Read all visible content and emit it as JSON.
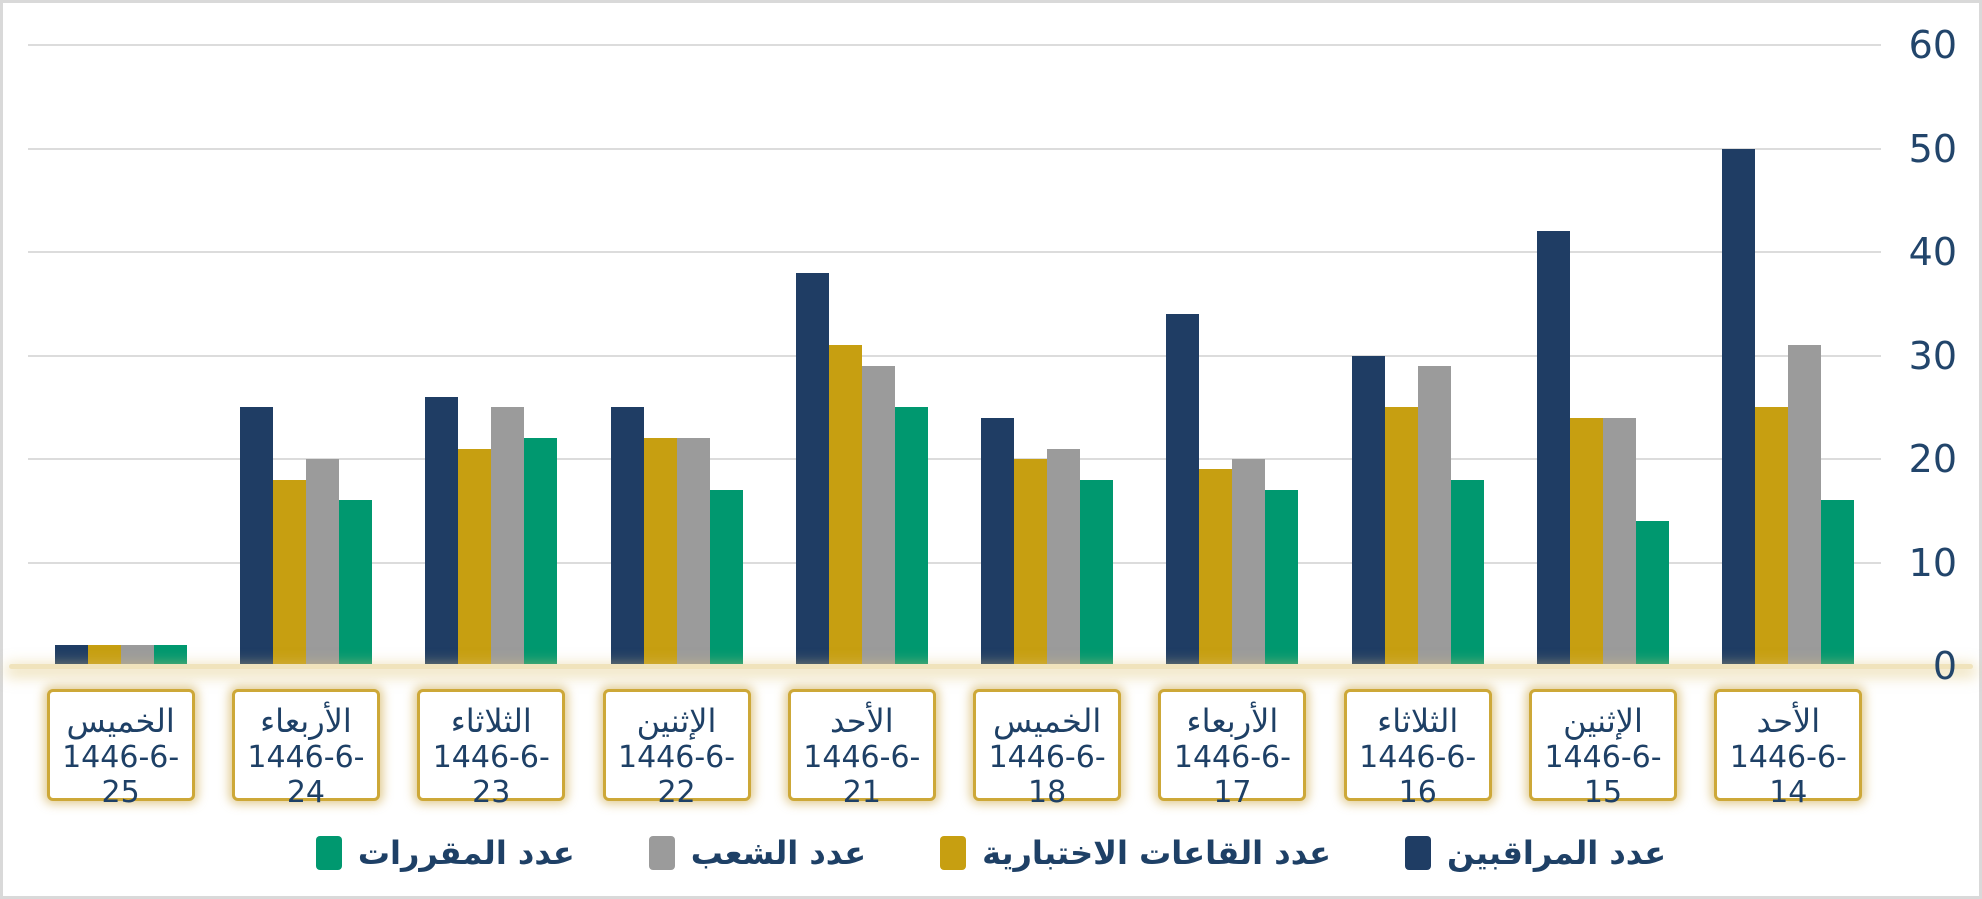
{
  "chart_data": {
    "type": "bar",
    "title": "",
    "direction": "rtl",
    "categories": [
      {
        "day": "الخميس",
        "date": "1446-6-25"
      },
      {
        "day": "الأربعاء",
        "date": "1446-6-24"
      },
      {
        "day": "الثلاثاء",
        "date": "1446-6-23"
      },
      {
        "day": "الإثنين",
        "date": "1446-6-22"
      },
      {
        "day": "الأحد",
        "date": "1446-6-21"
      },
      {
        "day": "الخميس",
        "date": "1446-6-18"
      },
      {
        "day": "الأربعاء",
        "date": "1446-6-17"
      },
      {
        "day": "الثلاثاء",
        "date": "1446-6-16"
      },
      {
        "day": "الإثنين",
        "date": "1446-6-15"
      },
      {
        "day": "الأحد",
        "date": "1446-6-14"
      }
    ],
    "series": [
      {
        "name": "عدد المراقبين",
        "color": "#1F3D64",
        "values": [
          2,
          25,
          26,
          25,
          38,
          24,
          34,
          30,
          42,
          50
        ]
      },
      {
        "name": "عدد القاعات الاختبارية",
        "color": "#C79F11",
        "values": [
          2,
          18,
          21,
          22,
          31,
          20,
          19,
          25,
          24,
          25
        ]
      },
      {
        "name": "عدد الشعب",
        "color": "#9B9B9B",
        "values": [
          2,
          20,
          25,
          22,
          29,
          21,
          20,
          29,
          24,
          31
        ]
      },
      {
        "name": "عدد المقررات",
        "color": "#00986F",
        "values": [
          2,
          16,
          22,
          17,
          25,
          18,
          17,
          18,
          14,
          16
        ]
      }
    ],
    "y_axis": {
      "min": 0,
      "max": 60,
      "step": 10,
      "position": "right",
      "ticks": [
        "0",
        "10",
        "20",
        "30",
        "40",
        "50",
        "60"
      ]
    },
    "grid": true,
    "legend_position": "bottom",
    "legend_order_left_to_right": [
      "عدد المقررات",
      "عدد الشعب",
      "عدد القاعات الاختبارية",
      "عدد المراقبين"
    ]
  },
  "colors": {
    "axis_text": "#22456B",
    "label_text": "#1E4066",
    "gridline": "#DCDCDC",
    "baseline": "#F0E3BC",
    "label_box_border": "#CDA838",
    "card_border": "#D9D9D9",
    "background": "#FFFFFF"
  }
}
